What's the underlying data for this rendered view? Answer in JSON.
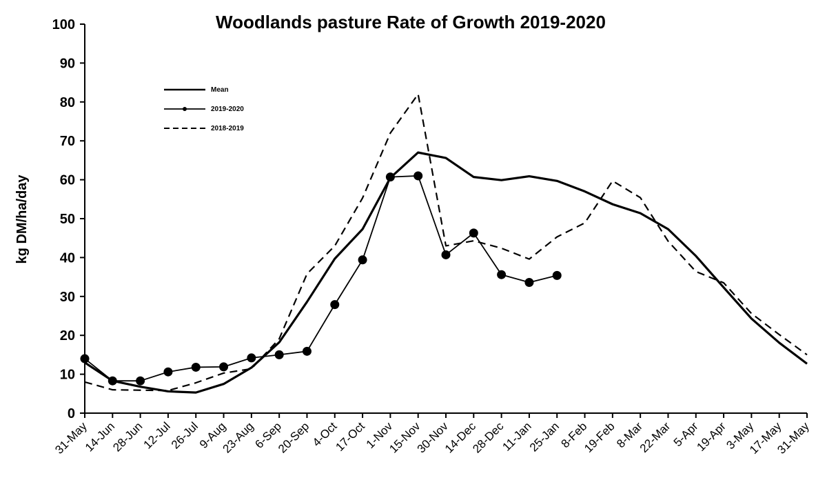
{
  "chart_data": {
    "type": "line",
    "title": "Woodlands pasture Rate of Growth 2019-2020",
    "xlabel": "",
    "ylabel": "kg DM/ha/day",
    "ylim": [
      0,
      100
    ],
    "yticks": [
      0,
      10,
      20,
      30,
      40,
      50,
      60,
      70,
      80,
      90,
      100
    ],
    "categories": [
      "31-May",
      "14-Jun",
      "28-Jun",
      "12-Jul",
      "26-Jul",
      "9-Aug",
      "23-Aug",
      "6-Sep",
      "20-Sep",
      "4-Oct",
      "17-Oct",
      "1-Nov",
      "15-Nov",
      "30-Nov",
      "14-Dec",
      "28-Dec",
      "11-Jan",
      "25-Jan",
      "8-Feb",
      "19-Feb",
      "8-Mar",
      "22-Mar",
      "5-Apr",
      "19-Apr",
      "3-May",
      "17-May",
      "31-May"
    ],
    "grid": false,
    "legend_position": "top-left",
    "series": [
      {
        "name": "Mean",
        "style": "solid-thick",
        "values": [
          13,
          8.3,
          6.8,
          5.6,
          5.3,
          7.5,
          11.7,
          18.2,
          28.6,
          39.7,
          47.3,
          60.5,
          67,
          65.6,
          60.7,
          59.9,
          60.9,
          59.7,
          57,
          53.7,
          51.4,
          47.3,
          40.4,
          32.3,
          24.3,
          18.1,
          12.7
        ]
      },
      {
        "name": "2019-2020",
        "style": "solid-markers",
        "values": [
          14,
          8.3,
          8.3,
          10.6,
          11.8,
          11.9,
          14.2,
          15,
          15.9,
          27.9,
          39.4,
          60.7,
          61,
          40.7,
          46.3,
          35.6,
          33.6,
          35.4,
          null,
          null,
          null,
          null,
          null,
          null,
          null,
          null,
          null
        ]
      },
      {
        "name": "2018-2019",
        "style": "dashed",
        "values": [
          8,
          6,
          5.9,
          5.8,
          7.8,
          10.3,
          11.4,
          19.1,
          35.8,
          43,
          55.3,
          72,
          82,
          43,
          44.3,
          42.4,
          39.6,
          45.3,
          48.9,
          59.7,
          55.4,
          44.2,
          36.4,
          33.5,
          25.6,
          20.2,
          15
        ]
      }
    ]
  }
}
